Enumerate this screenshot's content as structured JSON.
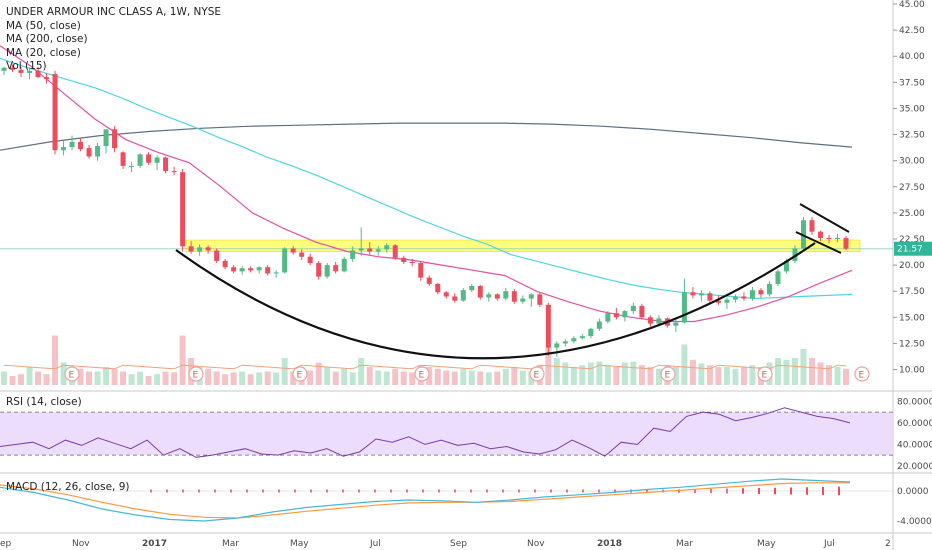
{
  "legend": {
    "title": "UNDER ARMOUR INC CLASS A, 1W, NYSE",
    "ma50": "MA (50, close)",
    "ma200": "MA (200, close)",
    "ma20": "MA (20, close)",
    "vol": "Vol (15)"
  },
  "rsi_label": "RSI (14, close)",
  "macd_label": "MACD (12, 26, close, 9)",
  "last_price_label": "21.57",
  "earnings_marker": "E",
  "colors": {
    "up": "#53b987",
    "down": "#eb4d5c",
    "ma50": "#4dd6e3",
    "ma200": "#5f6e82",
    "ma20": "#e24fa8",
    "resistance": "#ffff66",
    "rsi_fill": "#e8d5fb",
    "rsi_line": "#7b3aa8",
    "macd_line": "#47b7d8",
    "signal_line": "#ff9a3c"
  },
  "x_ticks": [
    "ep",
    "Nov",
    "2017",
    "Mar",
    "May",
    "Jul",
    "Sep",
    "Nov",
    "2018",
    "Mar",
    "May",
    "Jul",
    "2"
  ],
  "price_ticks": [
    "45.00",
    "42.50",
    "40.00",
    "37.50",
    "35.00",
    "32.50",
    "30.00",
    "27.50",
    "25.00",
    "22.50",
    "20.00",
    "17.50",
    "15.00",
    "12.50",
    "10.00"
  ],
  "rsi_ticks": [
    "80.0000",
    "60.0000",
    "40.0000",
    "20.0000"
  ],
  "macd_ticks": [
    "0.0000",
    "-4.0000"
  ],
  "chart_data": {
    "type": "candlestick",
    "title": "UNDER ARMOUR INC CLASS A, 1W, NYSE",
    "interval": "weekly",
    "x_range": [
      "2016-09",
      "2018-07"
    ],
    "y_range": [
      9,
      45
    ],
    "last_price": 21.57,
    "resistance_zone": [
      21.3,
      22.4
    ],
    "candles": [
      {
        "o": 38.6,
        "h": 39.0,
        "l": 38.2,
        "c": 38.9
      },
      {
        "o": 38.9,
        "h": 39.2,
        "l": 38.5,
        "c": 38.7
      },
      {
        "o": 38.7,
        "h": 39.0,
        "l": 38.0,
        "c": 38.4
      },
      {
        "o": 38.4,
        "h": 38.9,
        "l": 37.8,
        "c": 38.6
      },
      {
        "o": 38.6,
        "h": 39.0,
        "l": 37.9,
        "c": 38.0
      },
      {
        "o": 38.0,
        "h": 38.4,
        "l": 37.4,
        "c": 37.8
      },
      {
        "o": 38.3,
        "h": 38.6,
        "l": 30.6,
        "c": 31.0
      },
      {
        "o": 31.0,
        "h": 32.0,
        "l": 30.5,
        "c": 31.3
      },
      {
        "o": 31.3,
        "h": 32.4,
        "l": 31.0,
        "c": 31.8
      },
      {
        "o": 31.8,
        "h": 32.2,
        "l": 30.9,
        "c": 31.1
      },
      {
        "o": 31.2,
        "h": 31.5,
        "l": 30.2,
        "c": 30.4
      },
      {
        "o": 30.4,
        "h": 31.7,
        "l": 30.0,
        "c": 31.4
      },
      {
        "o": 31.4,
        "h": 33.0,
        "l": 30.7,
        "c": 33.0
      },
      {
        "o": 33.0,
        "h": 33.3,
        "l": 30.8,
        "c": 31.2
      },
      {
        "o": 30.8,
        "h": 30.9,
        "l": 29.2,
        "c": 29.5
      },
      {
        "o": 29.5,
        "h": 29.9,
        "l": 28.9,
        "c": 29.5
      },
      {
        "o": 29.5,
        "h": 30.7,
        "l": 29.3,
        "c": 30.6
      },
      {
        "o": 30.6,
        "h": 30.8,
        "l": 29.6,
        "c": 29.8
      },
      {
        "o": 29.8,
        "h": 30.5,
        "l": 29.1,
        "c": 30.3
      },
      {
        "o": 30.3,
        "h": 30.4,
        "l": 28.8,
        "c": 29.0
      },
      {
        "o": 29.0,
        "h": 29.4,
        "l": 28.6,
        "c": 28.9
      },
      {
        "o": 28.9,
        "h": 29.2,
        "l": 21.3,
        "c": 21.8
      },
      {
        "o": 21.8,
        "h": 22.3,
        "l": 21.1,
        "c": 21.3
      },
      {
        "o": 21.3,
        "h": 22.0,
        "l": 20.9,
        "c": 21.7
      },
      {
        "o": 21.7,
        "h": 21.9,
        "l": 21.1,
        "c": 21.4
      },
      {
        "o": 21.4,
        "h": 21.6,
        "l": 20.2,
        "c": 20.4
      },
      {
        "o": 20.4,
        "h": 20.6,
        "l": 19.6,
        "c": 19.8
      },
      {
        "o": 19.8,
        "h": 20.0,
        "l": 19.2,
        "c": 19.4
      },
      {
        "o": 19.4,
        "h": 19.9,
        "l": 19.1,
        "c": 19.7
      },
      {
        "o": 19.7,
        "h": 19.9,
        "l": 19.3,
        "c": 19.5
      },
      {
        "o": 19.5,
        "h": 19.9,
        "l": 19.2,
        "c": 19.8
      },
      {
        "o": 19.8,
        "h": 20.0,
        "l": 19.0,
        "c": 19.2
      },
      {
        "o": 19.2,
        "h": 19.5,
        "l": 18.8,
        "c": 19.3
      },
      {
        "o": 19.3,
        "h": 21.7,
        "l": 19.2,
        "c": 21.6
      },
      {
        "o": 21.6,
        "h": 21.8,
        "l": 21.0,
        "c": 21.2
      },
      {
        "o": 21.2,
        "h": 21.5,
        "l": 20.5,
        "c": 20.8
      },
      {
        "o": 20.8,
        "h": 21.1,
        "l": 20.0,
        "c": 20.2
      },
      {
        "o": 20.2,
        "h": 20.4,
        "l": 18.6,
        "c": 18.9
      },
      {
        "o": 18.9,
        "h": 20.2,
        "l": 18.7,
        "c": 20.0
      },
      {
        "o": 20.0,
        "h": 20.3,
        "l": 19.2,
        "c": 19.4
      },
      {
        "o": 19.4,
        "h": 20.8,
        "l": 19.3,
        "c": 20.6
      },
      {
        "o": 20.6,
        "h": 21.8,
        "l": 20.3,
        "c": 21.4
      },
      {
        "o": 21.4,
        "h": 23.6,
        "l": 20.9,
        "c": 21.6
      },
      {
        "o": 21.6,
        "h": 22.2,
        "l": 21.0,
        "c": 21.3
      },
      {
        "o": 21.3,
        "h": 21.8,
        "l": 20.9,
        "c": 21.5
      },
      {
        "o": 21.5,
        "h": 22.1,
        "l": 21.2,
        "c": 21.9
      },
      {
        "o": 21.9,
        "h": 22.0,
        "l": 20.5,
        "c": 20.7
      },
      {
        "o": 20.7,
        "h": 20.9,
        "l": 20.1,
        "c": 20.3
      },
      {
        "o": 20.3,
        "h": 20.6,
        "l": 19.9,
        "c": 20.2
      },
      {
        "o": 20.2,
        "h": 20.4,
        "l": 18.5,
        "c": 18.8
      },
      {
        "o": 18.8,
        "h": 19.0,
        "l": 18.0,
        "c": 18.2
      },
      {
        "o": 18.2,
        "h": 18.3,
        "l": 17.2,
        "c": 17.4
      },
      {
        "o": 17.4,
        "h": 17.5,
        "l": 16.8,
        "c": 17.0
      },
      {
        "o": 17.0,
        "h": 17.3,
        "l": 16.4,
        "c": 16.6
      },
      {
        "o": 16.6,
        "h": 17.8,
        "l": 16.5,
        "c": 17.6
      },
      {
        "o": 17.6,
        "h": 18.2,
        "l": 17.4,
        "c": 18.0
      },
      {
        "o": 18.0,
        "h": 18.1,
        "l": 16.7,
        "c": 16.9
      },
      {
        "o": 16.9,
        "h": 17.4,
        "l": 16.5,
        "c": 17.2
      },
      {
        "o": 17.2,
        "h": 17.3,
        "l": 16.6,
        "c": 16.8
      },
      {
        "o": 16.8,
        "h": 17.8,
        "l": 16.6,
        "c": 17.5
      },
      {
        "o": 17.5,
        "h": 17.7,
        "l": 16.3,
        "c": 16.5
      },
      {
        "o": 16.5,
        "h": 17.1,
        "l": 16.3,
        "c": 16.8
      },
      {
        "o": 16.8,
        "h": 17.3,
        "l": 16.0,
        "c": 17.2
      },
      {
        "o": 17.2,
        "h": 17.4,
        "l": 16.0,
        "c": 16.2
      },
      {
        "o": 16.2,
        "h": 16.4,
        "l": 11.3,
        "c": 12.1
      },
      {
        "o": 12.1,
        "h": 12.7,
        "l": 11.2,
        "c": 12.5
      },
      {
        "o": 12.5,
        "h": 12.9,
        "l": 12.2,
        "c": 12.7
      },
      {
        "o": 12.7,
        "h": 13.2,
        "l": 12.5,
        "c": 13.0
      },
      {
        "o": 13.0,
        "h": 13.4,
        "l": 12.9,
        "c": 13.2
      },
      {
        "o": 13.2,
        "h": 14.0,
        "l": 13.0,
        "c": 13.9
      },
      {
        "o": 13.9,
        "h": 14.9,
        "l": 13.7,
        "c": 14.6
      },
      {
        "o": 14.6,
        "h": 15.6,
        "l": 14.4,
        "c": 15.4
      },
      {
        "o": 15.4,
        "h": 15.9,
        "l": 14.8,
        "c": 15.0
      },
      {
        "o": 15.0,
        "h": 15.7,
        "l": 14.6,
        "c": 15.6
      },
      {
        "o": 15.6,
        "h": 16.4,
        "l": 15.3,
        "c": 16.1
      },
      {
        "o": 16.1,
        "h": 16.3,
        "l": 14.8,
        "c": 15.0
      },
      {
        "o": 15.0,
        "h": 15.2,
        "l": 14.1,
        "c": 14.4
      },
      {
        "o": 14.4,
        "h": 15.2,
        "l": 14.2,
        "c": 14.9
      },
      {
        "o": 14.9,
        "h": 15.0,
        "l": 14.0,
        "c": 14.2
      },
      {
        "o": 14.2,
        "h": 14.8,
        "l": 13.6,
        "c": 14.5
      },
      {
        "o": 14.5,
        "h": 18.7,
        "l": 14.4,
        "c": 17.4
      },
      {
        "o": 17.4,
        "h": 17.9,
        "l": 16.8,
        "c": 17.1
      },
      {
        "o": 17.1,
        "h": 17.6,
        "l": 16.5,
        "c": 17.3
      },
      {
        "o": 17.3,
        "h": 17.5,
        "l": 16.3,
        "c": 16.6
      },
      {
        "o": 16.6,
        "h": 17.1,
        "l": 16.2,
        "c": 16.4
      },
      {
        "o": 16.4,
        "h": 16.9,
        "l": 15.8,
        "c": 16.7
      },
      {
        "o": 16.7,
        "h": 17.2,
        "l": 16.4,
        "c": 17.0
      },
      {
        "o": 17.0,
        "h": 17.4,
        "l": 16.6,
        "c": 16.8
      },
      {
        "o": 16.8,
        "h": 17.9,
        "l": 16.6,
        "c": 17.6
      },
      {
        "o": 17.6,
        "h": 17.8,
        "l": 16.9,
        "c": 17.2
      },
      {
        "o": 17.2,
        "h": 18.5,
        "l": 17.0,
        "c": 18.2
      },
      {
        "o": 18.2,
        "h": 19.6,
        "l": 18.0,
        "c": 19.4
      },
      {
        "o": 19.4,
        "h": 20.6,
        "l": 19.2,
        "c": 20.4
      },
      {
        "o": 20.4,
        "h": 21.9,
        "l": 20.2,
        "c": 21.6
      },
      {
        "o": 21.6,
        "h": 24.6,
        "l": 21.3,
        "c": 24.3
      },
      {
        "o": 24.3,
        "h": 24.6,
        "l": 22.9,
        "c": 23.2
      },
      {
        "o": 23.2,
        "h": 23.3,
        "l": 22.3,
        "c": 22.6
      },
      {
        "o": 22.6,
        "h": 22.9,
        "l": 22.1,
        "c": 22.5
      },
      {
        "o": 22.5,
        "h": 23.0,
        "l": 22.2,
        "c": 22.6
      },
      {
        "o": 22.6,
        "h": 22.8,
        "l": 21.4,
        "c": 21.57
      }
    ],
    "volume_relative": [
      0.15,
      0.1,
      0.12,
      0.2,
      0.15,
      0.12,
      0.55,
      0.25,
      0.2,
      0.18,
      0.15,
      0.15,
      0.2,
      0.18,
      0.15,
      0.12,
      0.15,
      0.1,
      0.12,
      0.15,
      0.14,
      0.55,
      0.3,
      0.2,
      0.18,
      0.15,
      0.12,
      0.14,
      0.15,
      0.12,
      0.14,
      0.15,
      0.14,
      0.3,
      0.15,
      0.2,
      0.16,
      0.25,
      0.2,
      0.15,
      0.18,
      0.14,
      0.3,
      0.2,
      0.16,
      0.15,
      0.18,
      0.15,
      0.14,
      0.22,
      0.2,
      0.18,
      0.16,
      0.15,
      0.18,
      0.16,
      0.15,
      0.14,
      0.15,
      0.18,
      0.2,
      0.16,
      0.15,
      0.22,
      0.42,
      0.3,
      0.25,
      0.2,
      0.22,
      0.25,
      0.26,
      0.22,
      0.2,
      0.25,
      0.26,
      0.22,
      0.2,
      0.18,
      0.22,
      0.2,
      0.45,
      0.28,
      0.24,
      0.22,
      0.2,
      0.2,
      0.18,
      0.2,
      0.22,
      0.2,
      0.25,
      0.3,
      0.28,
      0.3,
      0.4,
      0.3,
      0.25,
      0.22,
      0.2,
      0.18
    ],
    "ma50": [
      39.8,
      39.0,
      38.3,
      37.6,
      36.9,
      36.0,
      35.0,
      34.1,
      33.2,
      32.2,
      31.3,
      30.3,
      29.5,
      28.6,
      27.6,
      26.6,
      25.6,
      24.6,
      23.7,
      22.8,
      22.0,
      21.0,
      20.4,
      19.8,
      19.2,
      18.6,
      18.1,
      17.7,
      17.4,
      17.2,
      17.0,
      16.8,
      16.9,
      17.0,
      17.1,
      17.2
    ],
    "ma200": [
      31.0,
      31.8,
      32.4,
      32.8,
      33.1,
      33.3,
      33.4,
      33.5,
      33.6,
      33.6,
      33.6,
      33.5,
      33.3,
      33.0,
      32.6,
      32.2,
      31.7,
      31.3
    ],
    "ma20": [
      41.0,
      39.0,
      36.5,
      34.0,
      32.0,
      30.8,
      29.8,
      27.5,
      25.0,
      23.5,
      22.2,
      21.3,
      20.8,
      20.5,
      20.0,
      19.5,
      19.0,
      17.5,
      16.5,
      15.6,
      15.0,
      14.6,
      14.6,
      15.2,
      16.0,
      17.0,
      18.3,
      19.5
    ],
    "resistance_label_note": "",
    "rsi": [
      38,
      40,
      42,
      36,
      44,
      39,
      46,
      41,
      36,
      44,
      30,
      36,
      28,
      30,
      33,
      36,
      31,
      30,
      34,
      32,
      36,
      29,
      33,
      45,
      42,
      47,
      40,
      44,
      39,
      41,
      36,
      38,
      33,
      31,
      35,
      44,
      37,
      29,
      42,
      40,
      55,
      52,
      66,
      70,
      68,
      62,
      65,
      69,
      74,
      70,
      66,
      64,
      60
    ],
    "rsi_levels": [
      70,
      30
    ],
    "macd": [
      0.5,
      -0.2,
      -1.2,
      -2.4,
      -3.2,
      -3.8,
      -4.0,
      -3.6,
      -2.8,
      -2.2,
      -1.8,
      -1.4,
      -1.2,
      -1.3,
      -1.5,
      -1.2,
      -0.8,
      -0.5,
      -0.2,
      0.2,
      0.5,
      0.9,
      1.3,
      1.6,
      1.4,
      1.2
    ],
    "signal": [
      0.8,
      0.3,
      -0.5,
      -1.5,
      -2.4,
      -3.1,
      -3.5,
      -3.6,
      -3.2,
      -2.7,
      -2.3,
      -1.9,
      -1.6,
      -1.5,
      -1.5,
      -1.4,
      -1.1,
      -0.8,
      -0.5,
      -0.2,
      0.1,
      0.4,
      0.7,
      1.0,
      1.1,
      1.1
    ]
  }
}
